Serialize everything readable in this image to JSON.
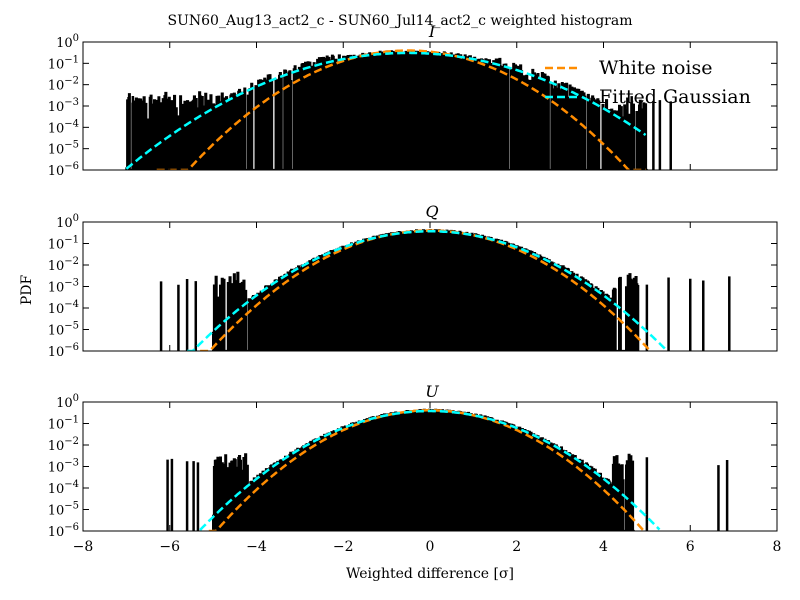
{
  "figure_title": "SUN60_Aug13_act2_c - SUN60_Jul14_act2_c weighted histogram",
  "shared_ylabel": "PDF",
  "shared_xlabel": "Weighted difference [σ]",
  "legend": {
    "placement": "top-right of first panel",
    "entries": [
      {
        "label": "White noise",
        "color": "#ff8c00",
        "style": "dashed"
      },
      {
        "label": "Fitted Gaussian",
        "color": "#00ffff",
        "style": "dashed"
      }
    ]
  },
  "chart_data": [
    {
      "type": "line",
      "title": "I",
      "xlim": [
        -8,
        8
      ],
      "ylim": [
        1e-06,
        1
      ],
      "yscale": "log",
      "xticks": [
        -8,
        -6,
        -4,
        -2,
        0,
        2,
        4,
        6,
        8
      ],
      "xtick_labels": [
        "−8",
        "−6",
        "−4",
        "−2",
        "0",
        "2",
        "4",
        "6",
        "8"
      ],
      "ytick_labels": [
        "10⁻⁶",
        "10⁻⁵",
        "10⁻⁴",
        "10⁻³",
        "10⁻²",
        "10⁻¹",
        "10⁰"
      ],
      "series": [
        {
          "name": "White noise",
          "kind": "gaussian",
          "mu": -0.5,
          "sigma": 1.0,
          "color": "#ff8c00",
          "x_range": [
            -6.3,
            5.0
          ]
        },
        {
          "name": "Fitted Gaussian",
          "kind": "gaussian",
          "mu": -0.5,
          "sigma": 1.3,
          "color": "#00ffff",
          "x_range": [
            -7.0,
            5.0
          ]
        },
        {
          "kind": "histogram",
          "color": "#000000",
          "left_tail": [
            -7.0,
            -0.8
          ],
          "right_tail": [
            0.3,
            5.0
          ],
          "tail_level_left": 0.001,
          "tail_level_right": 0.0005,
          "sparse_spikes": [
            -6.95,
            -6.85,
            4.55,
            4.65,
            5.15,
            5.3,
            5.55
          ]
        }
      ]
    },
    {
      "type": "line",
      "title": "Q",
      "xlim": [
        -8,
        8
      ],
      "ylim": [
        1e-06,
        1
      ],
      "yscale": "log",
      "xticks": [
        -8,
        -6,
        -4,
        -2,
        0,
        2,
        4,
        6,
        8
      ],
      "series": [
        {
          "name": "White noise",
          "kind": "gaussian",
          "mu": 0.0,
          "sigma": 1.0,
          "color": "#ff8c00",
          "x_range": [
            -5.3,
            5.1
          ]
        },
        {
          "name": "Fitted Gaussian",
          "kind": "gaussian",
          "mu": 0.0,
          "sigma": 1.08,
          "color": "#00ffff",
          "x_range": [
            -5.6,
            5.5
          ]
        },
        {
          "kind": "histogram",
          "color": "#000000",
          "left_tail": [
            -5.0,
            -3.0
          ],
          "right_tail": [
            3.0,
            4.8
          ],
          "tail_level_left": 0.001,
          "tail_level_right": 0.001,
          "sparse_spikes": [
            -6.2,
            -5.8,
            -5.6,
            -5.4,
            5.0,
            5.5,
            6.0,
            6.3,
            6.9
          ]
        }
      ]
    },
    {
      "type": "line",
      "title": "U",
      "xlim": [
        -8,
        8
      ],
      "ylim": [
        1e-06,
        1
      ],
      "yscale": "log",
      "xticks": [
        -8,
        -6,
        -4,
        -2,
        0,
        2,
        4,
        6,
        8
      ],
      "xtick_labels": [
        "−8",
        "−6",
        "−4",
        "−2",
        "0",
        "2",
        "4",
        "6",
        "8"
      ],
      "series": [
        {
          "name": "White noise",
          "kind": "gaussian",
          "mu": 0.0,
          "sigma": 0.97,
          "color": "#ff8c00",
          "x_range": [
            -5.1,
            5.0
          ]
        },
        {
          "name": "Fitted Gaussian",
          "kind": "gaussian",
          "mu": 0.0,
          "sigma": 1.05,
          "color": "#00ffff",
          "x_range": [
            -5.3,
            5.3
          ]
        },
        {
          "kind": "histogram",
          "color": "#000000",
          "left_tail": [
            -5.0,
            -3.0
          ],
          "right_tail": [
            3.0,
            4.7
          ],
          "tail_level_left": 0.001,
          "tail_level_right": 0.001,
          "sparse_spikes": [
            -6.05,
            -5.95,
            -5.6,
            -5.45,
            -5.35,
            5.0,
            6.65,
            6.85
          ]
        }
      ]
    }
  ]
}
